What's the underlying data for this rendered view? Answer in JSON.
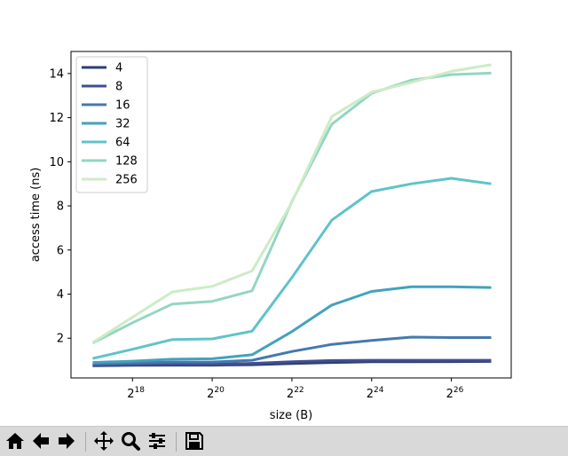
{
  "chart_data": {
    "type": "line",
    "title": "",
    "xlabel": "size (B)",
    "ylabel": "access time (ns)",
    "xscale": "log2",
    "x": [
      131072,
      262144,
      524288,
      1048576,
      2097152,
      4194304,
      8388608,
      16777216,
      33554432,
      67108864,
      134217728
    ],
    "xlim": [
      90000,
      190000000
    ],
    "ylim": [
      0.2,
      15.0
    ],
    "xticks": [
      {
        "base": "2",
        "exp": "18",
        "value": 262144
      },
      {
        "base": "2",
        "exp": "20",
        "value": 1048576
      },
      {
        "base": "2",
        "exp": "22",
        "value": 4194304
      },
      {
        "base": "2",
        "exp": "24",
        "value": 16777216
      },
      {
        "base": "2",
        "exp": "26",
        "value": 67108864
      }
    ],
    "yticks": [
      2,
      4,
      6,
      8,
      10,
      12,
      14
    ],
    "grid": false,
    "legend_position": "upper-left",
    "series": [
      {
        "name": "4",
        "color": "#2d3e73",
        "values": [
          0.75,
          0.77,
          0.78,
          0.78,
          0.8,
          0.85,
          0.9,
          0.93,
          0.93,
          0.94,
          0.95
        ]
      },
      {
        "name": "8",
        "color": "#404f93",
        "values": [
          0.78,
          0.8,
          0.82,
          0.82,
          0.86,
          0.93,
          0.99,
          1.0,
          1.0,
          1.0,
          1.0
        ]
      },
      {
        "name": "16",
        "color": "#4579ad",
        "values": [
          0.84,
          0.88,
          0.92,
          0.92,
          1.0,
          1.4,
          1.72,
          1.9,
          2.05,
          2.03,
          2.03
        ]
      },
      {
        "name": "32",
        "color": "#43a2bd",
        "values": [
          0.9,
          0.96,
          1.05,
          1.07,
          1.25,
          2.3,
          3.5,
          4.12,
          4.33,
          4.33,
          4.3
        ]
      },
      {
        "name": "64",
        "color": "#5fc3c9",
        "values": [
          1.08,
          1.5,
          1.94,
          1.97,
          2.32,
          4.75,
          7.35,
          8.65,
          9.0,
          9.25,
          9.0
        ]
      },
      {
        "name": "128",
        "color": "#93d6c2",
        "values": [
          1.78,
          2.7,
          3.55,
          3.67,
          4.15,
          8.2,
          11.7,
          13.1,
          13.7,
          13.95,
          14.02
        ]
      },
      {
        "name": "256",
        "color": "#cdebc6",
        "values": [
          1.8,
          2.95,
          4.1,
          4.35,
          5.05,
          8.15,
          12.05,
          13.15,
          13.6,
          14.1,
          14.4
        ]
      }
    ]
  },
  "toolbar": {
    "buttons": [
      {
        "name": "home-icon"
      },
      {
        "name": "back-arrow-icon"
      },
      {
        "name": "forward-arrow-icon"
      },
      {
        "name": "pan-icon"
      },
      {
        "name": "zoom-icon"
      },
      {
        "name": "configure-subplots-icon"
      },
      {
        "name": "save-icon"
      }
    ]
  }
}
